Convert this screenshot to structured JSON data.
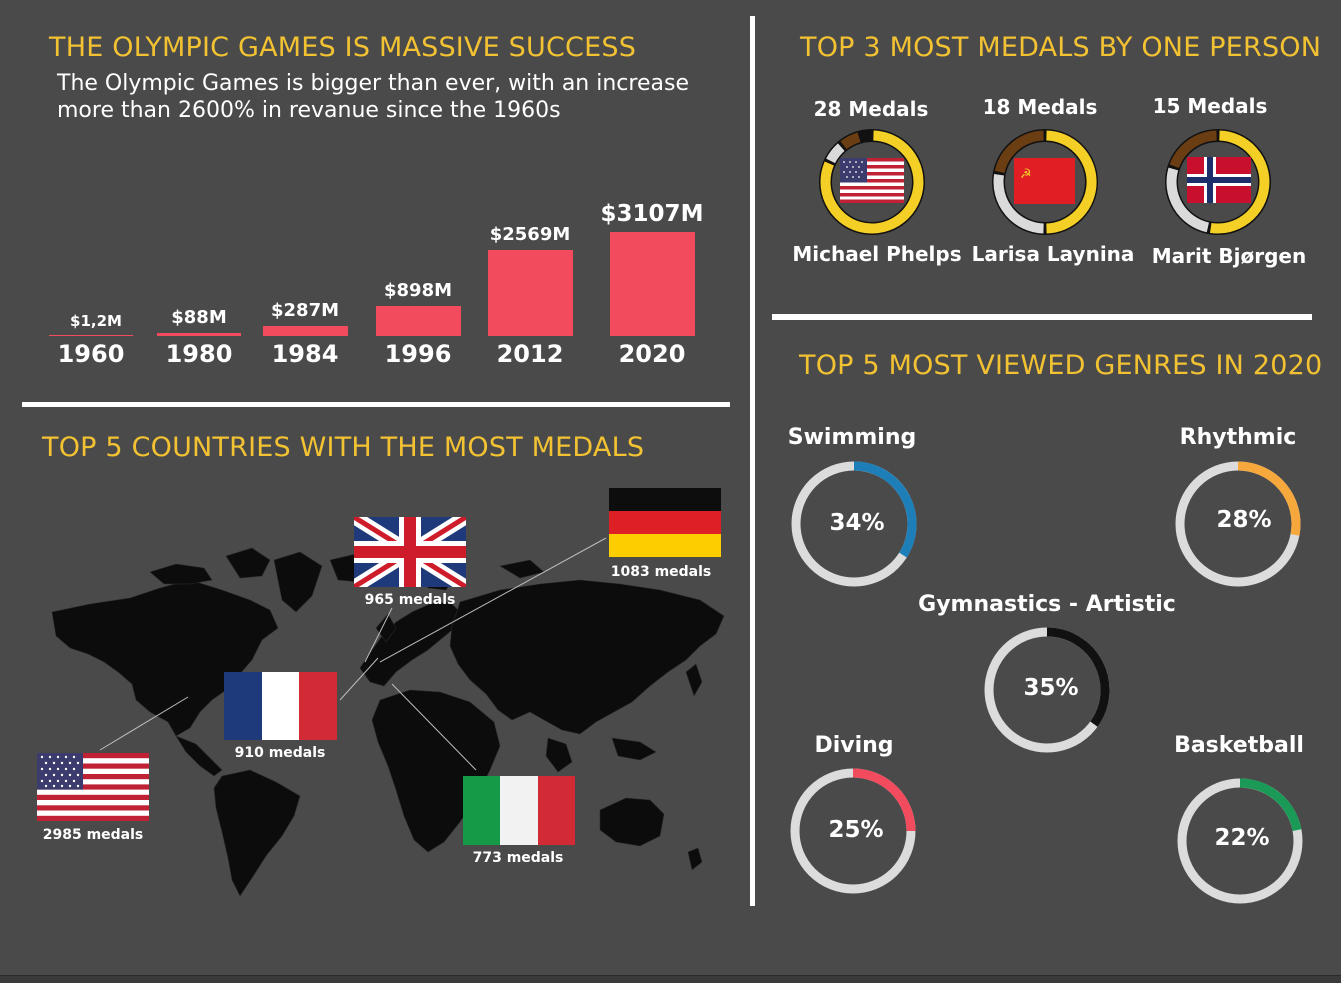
{
  "revenue": {
    "title": "THE OLYMPIC GAMES IS MASSIVE SUCCESS",
    "subtitle": "The Olympic Games is bigger than ever, with an increase more than 2600% in revanue since the 1960s"
  },
  "chart_data": [
    {
      "type": "bar",
      "categories": [
        "1960",
        "1980",
        "1984",
        "1996",
        "2012",
        "2020"
      ],
      "values": [
        1.2,
        88,
        287,
        898,
        2569,
        3107
      ],
      "data_labels": [
        "$1,2M",
        "$88M",
        "$287M",
        "$898M",
        "$2569M",
        "$3107M"
      ],
      "ylabel": "",
      "color": "#f24b5e"
    },
    {
      "type": "pie",
      "title": "TOP 5 MOST VIEWED GENRES IN 2020",
      "categories": [
        "Swimming",
        "Rhythmic",
        "Gymnastics - Artistic",
        "Diving",
        "Basketball"
      ],
      "values": [
        34,
        28,
        35,
        25,
        22
      ],
      "labels": [
        "34%",
        "28%",
        "35%",
        "25%",
        "22%"
      ],
      "colors": [
        "#1e7fb8",
        "#f6a83c",
        "#111111",
        "#f24b5e",
        "#1a9a56"
      ]
    }
  ],
  "athletes": {
    "title": "TOP 3 MOST MEDALS BY ONE PERSON",
    "items": [
      {
        "medals": "28 Medals",
        "name": "Michael Phelps",
        "flag": "usa",
        "ring": {
          "gold": 0.82,
          "silver": 0.07,
          "bronze": 0.07
        }
      },
      {
        "medals": "18 Medals",
        "name": "Larisa Laynina",
        "flag": "ussr",
        "ring": {
          "gold": 0.5,
          "silver": 0.28,
          "bronze": 0.22
        }
      },
      {
        "medals": "15 Medals",
        "name": "Marit Bjørgen",
        "flag": "norway",
        "ring": {
          "gold": 0.53,
          "silver": 0.27,
          "bronze": 0.2
        }
      }
    ],
    "ring_colors": {
      "gold": "#f4cf25",
      "silver": "#dadada",
      "bronze": "#6b3d12"
    }
  },
  "countries": {
    "title": "TOP 5 COUNTRIES WITH THE MOST MEDALS",
    "items": [
      {
        "flag": "usa",
        "label": "2985 medals"
      },
      {
        "flag": "france",
        "label": "910 medals"
      },
      {
        "flag": "uk",
        "label": "965 medals"
      },
      {
        "flag": "germany",
        "label": "1083 medals"
      },
      {
        "flag": "italy",
        "label": "773 medals"
      }
    ]
  },
  "genres": {
    "title": "TOP 5 MOST VIEWED GENRES IN 2020",
    "track_color": "#dcdcdc",
    "inner_color": "#4a4a4a"
  }
}
